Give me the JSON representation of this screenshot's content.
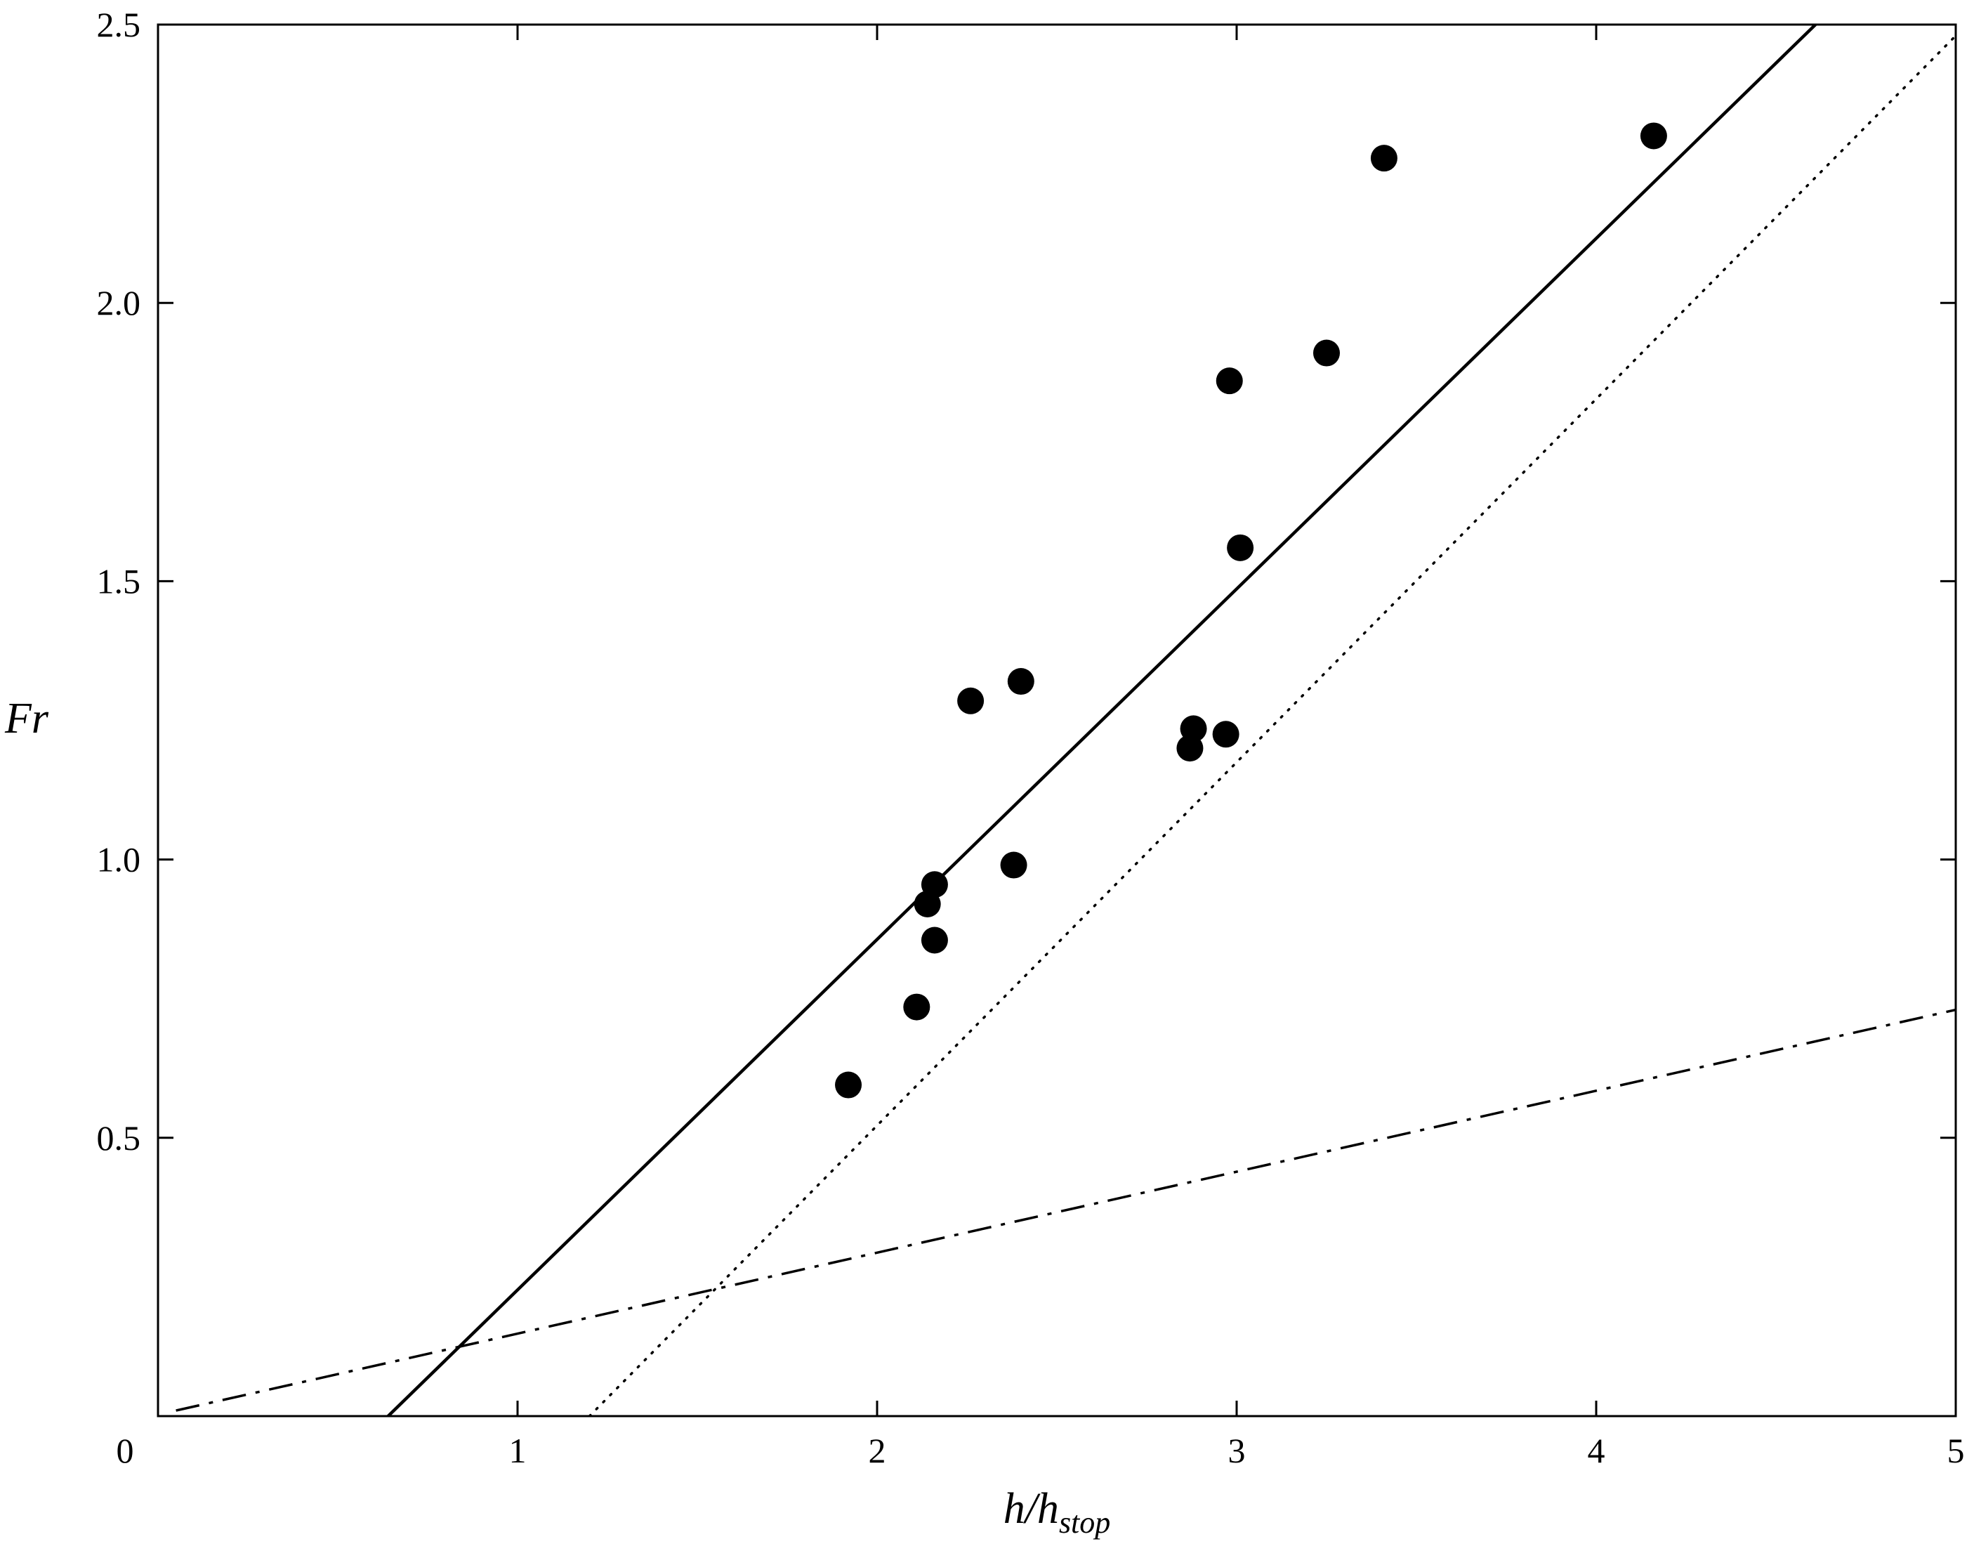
{
  "chart_data": {
    "type": "scatter",
    "title": "",
    "xlabel": {
      "main": "h/h",
      "subscript": "stop"
    },
    "ylabel": "Fr",
    "xlim": [
      0,
      5
    ],
    "ylim": [
      0,
      2.5
    ],
    "x_ticks": [
      {
        "value": 0,
        "label": "0"
      },
      {
        "value": 1,
        "label": "1"
      },
      {
        "value": 2,
        "label": "2"
      },
      {
        "value": 3,
        "label": "3"
      },
      {
        "value": 4,
        "label": "4"
      },
      {
        "value": 5,
        "label": "5"
      }
    ],
    "y_ticks": [
      {
        "value": 0.5,
        "label": "0.5"
      },
      {
        "value": 1.0,
        "label": "1.0"
      },
      {
        "value": 1.5,
        "label": "1.5"
      },
      {
        "value": 2.0,
        "label": "2.0"
      },
      {
        "value": 2.5,
        "label": "2.5"
      }
    ],
    "grid": false,
    "legend": "none",
    "series": [
      {
        "kind": "points",
        "marker": "filled-circle",
        "color": "#000000",
        "points": [
          [
            1.92,
            0.595
          ],
          [
            2.11,
            0.735
          ],
          [
            2.14,
            0.92
          ],
          [
            2.16,
            0.955
          ],
          [
            2.16,
            0.855
          ],
          [
            2.26,
            1.285
          ],
          [
            2.38,
            0.99
          ],
          [
            2.4,
            1.32
          ],
          [
            2.87,
            1.2
          ],
          [
            2.88,
            1.235
          ],
          [
            2.97,
            1.225
          ],
          [
            2.98,
            1.86
          ],
          [
            3.01,
            1.56
          ],
          [
            3.25,
            1.91
          ],
          [
            3.41,
            2.26
          ],
          [
            4.16,
            2.3
          ]
        ]
      },
      {
        "kind": "line",
        "style": "solid",
        "color": "#000000",
        "points": [
          [
            0.64,
            0.0
          ],
          [
            4.61,
            2.5
          ]
        ]
      },
      {
        "kind": "line",
        "style": "dotted",
        "color": "#000000",
        "points": [
          [
            1.2,
            0.0
          ],
          [
            5.0,
            2.48
          ]
        ]
      },
      {
        "kind": "line",
        "style": "dash-dot",
        "color": "#000000",
        "points": [
          [
            0.05,
            0.01
          ],
          [
            5.0,
            0.73
          ]
        ]
      }
    ]
  }
}
